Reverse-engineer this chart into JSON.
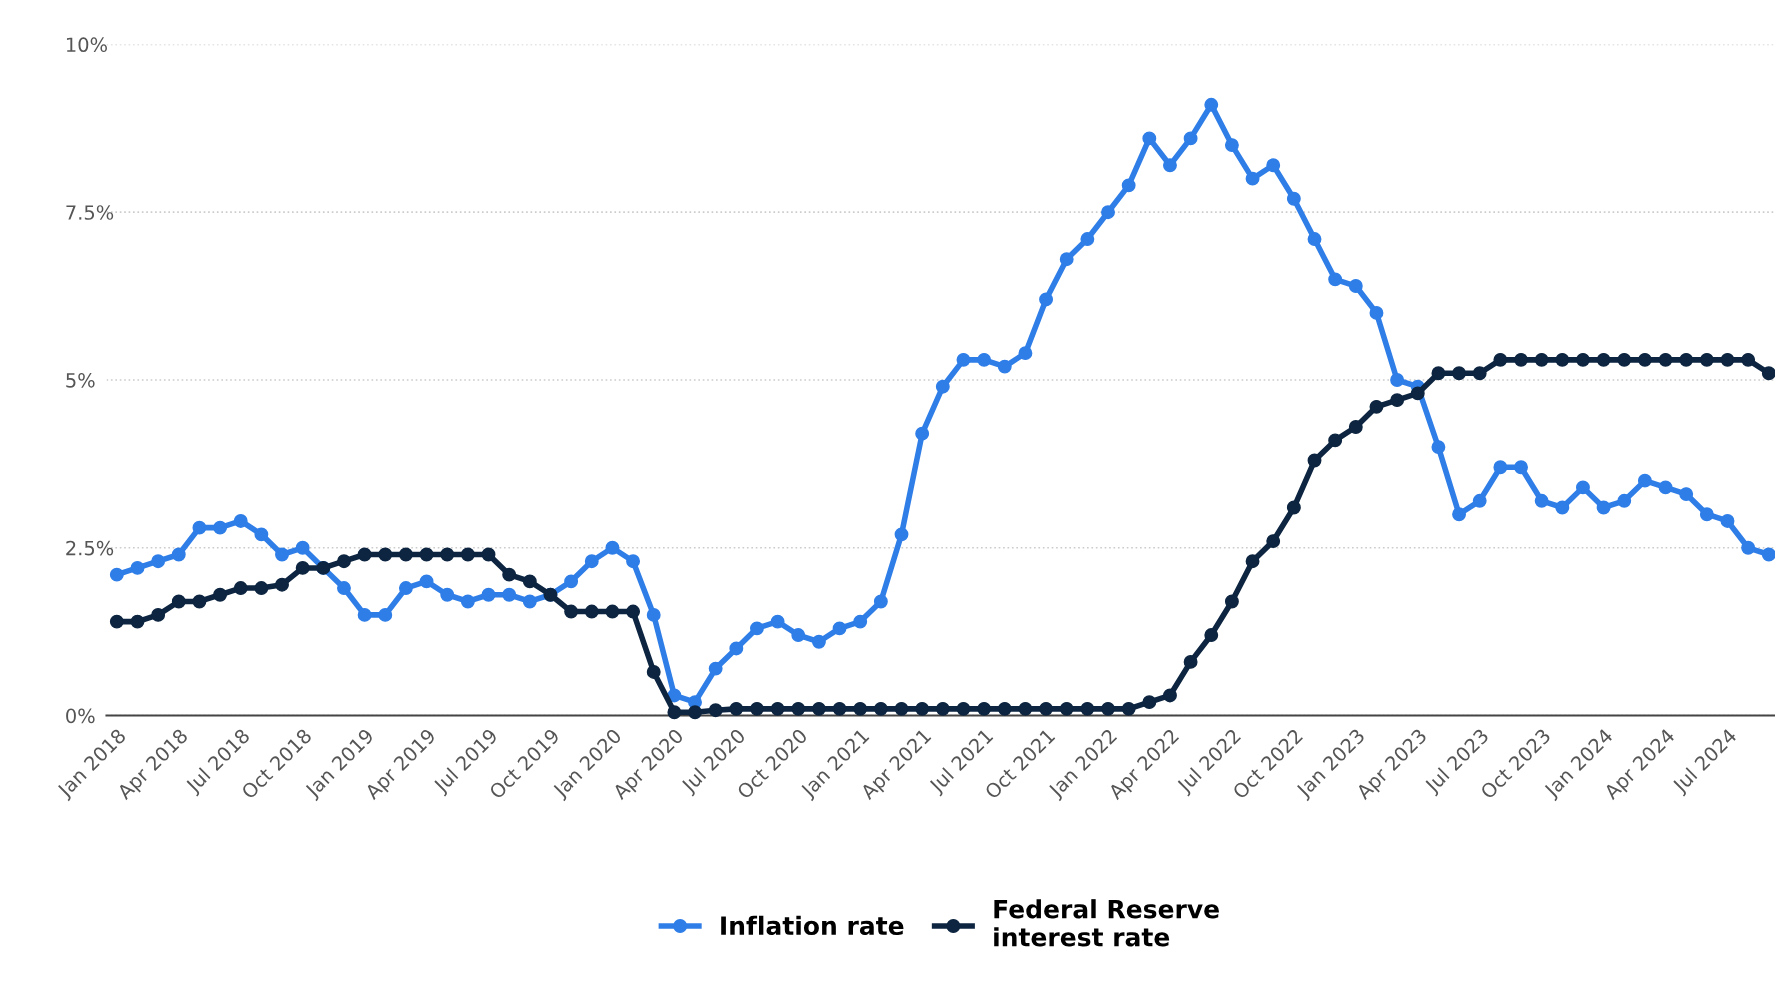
{
  "chart_data": {
    "type": "line",
    "categories": [
      "Jan 2018",
      null,
      null,
      "Apr 2018",
      null,
      null,
      "Jul 2018",
      null,
      null,
      "Oct 2018",
      null,
      null,
      "Jan 2019",
      null,
      null,
      "Apr 2019",
      null,
      null,
      "Jul 2019",
      null,
      null,
      "Oct 2019",
      null,
      null,
      "Jan 2020",
      null,
      null,
      "Apr 2020",
      null,
      null,
      "Jul 2020",
      null,
      null,
      "Oct 2020",
      null,
      null,
      "Jan 2021",
      null,
      null,
      "Apr 2021",
      null,
      null,
      "Jul 2021",
      null,
      null,
      "Oct 2021",
      null,
      null,
      "Jan 2022",
      null,
      null,
      "Apr 2022",
      null,
      null,
      "Jul 2022",
      null,
      null,
      "Oct 2022",
      null,
      null,
      "Jan 2023",
      null,
      null,
      "Apr 2023",
      null,
      null,
      "Jul 2023",
      null,
      null,
      "Oct 2023",
      null,
      null,
      "Jan 2024",
      null,
      null,
      "Apr 2024",
      null,
      null,
      "Jul 2024",
      null,
      null
    ],
    "series": [
      {
        "name": "Inflation rate",
        "color": "#2f7ee8",
        "values": [
          2.1,
          2.2,
          2.3,
          2.4,
          2.8,
          2.8,
          2.9,
          2.7,
          2.4,
          2.5,
          2.2,
          1.9,
          1.5,
          1.5,
          1.9,
          2.0,
          1.8,
          1.7,
          1.8,
          1.8,
          1.7,
          1.8,
          2.0,
          2.3,
          2.5,
          2.3,
          1.5,
          0.3,
          0.2,
          0.7,
          1.0,
          1.3,
          1.4,
          1.2,
          1.1,
          1.3,
          1.4,
          1.7,
          2.7,
          4.2,
          4.9,
          5.3,
          5.3,
          5.2,
          5.4,
          6.2,
          6.8,
          7.1,
          7.5,
          7.9,
          8.6,
          8.2,
          8.6,
          9.1,
          8.5,
          8.0,
          8.2,
          7.7,
          7.1,
          6.5,
          6.4,
          6.0,
          5.0,
          4.9,
          4.0,
          3.0,
          3.2,
          3.7,
          3.7,
          3.2,
          3.1,
          3.4,
          3.1,
          3.2,
          3.5,
          3.4,
          3.3,
          3.0,
          2.9,
          2.5,
          2.4
        ]
      },
      {
        "name": "Federal Reserve\ninterest rate",
        "color": "#0d2540",
        "values": [
          1.4,
          1.4,
          1.5,
          1.7,
          1.7,
          1.8,
          1.9,
          1.9,
          1.95,
          2.2,
          2.2,
          2.3,
          2.4,
          2.4,
          2.4,
          2.4,
          2.4,
          2.4,
          2.4,
          2.1,
          2.0,
          1.8,
          1.55,
          1.55,
          1.55,
          1.55,
          0.65,
          0.05,
          0.05,
          0.08,
          0.1,
          0.1,
          0.1,
          0.1,
          0.1,
          0.1,
          0.1,
          0.1,
          0.1,
          0.1,
          0.1,
          0.1,
          0.1,
          0.1,
          0.1,
          0.1,
          0.1,
          0.1,
          0.1,
          0.1,
          0.2,
          0.3,
          0.8,
          1.2,
          1.7,
          2.3,
          2.6,
          3.1,
          3.8,
          4.1,
          4.3,
          4.6,
          4.7,
          4.8,
          5.1,
          5.1,
          5.1,
          5.3,
          5.3,
          5.3,
          5.3,
          5.3,
          5.3,
          5.3,
          5.3,
          5.3,
          5.3,
          5.3,
          5.3,
          5.3,
          5.1
        ]
      }
    ],
    "ylim": [
      0,
      10
    ],
    "yticks": [
      {
        "value": 0,
        "label": "0%"
      },
      {
        "value": 2.5,
        "label": "2.5%"
      },
      {
        "value": 5,
        "label": "5%"
      },
      {
        "value": 7.5,
        "label": "7.5%"
      },
      {
        "value": 10,
        "label": "10%"
      }
    ],
    "grid": "y",
    "legend": "bottom",
    "marker": "circle",
    "line_style": "solid"
  }
}
